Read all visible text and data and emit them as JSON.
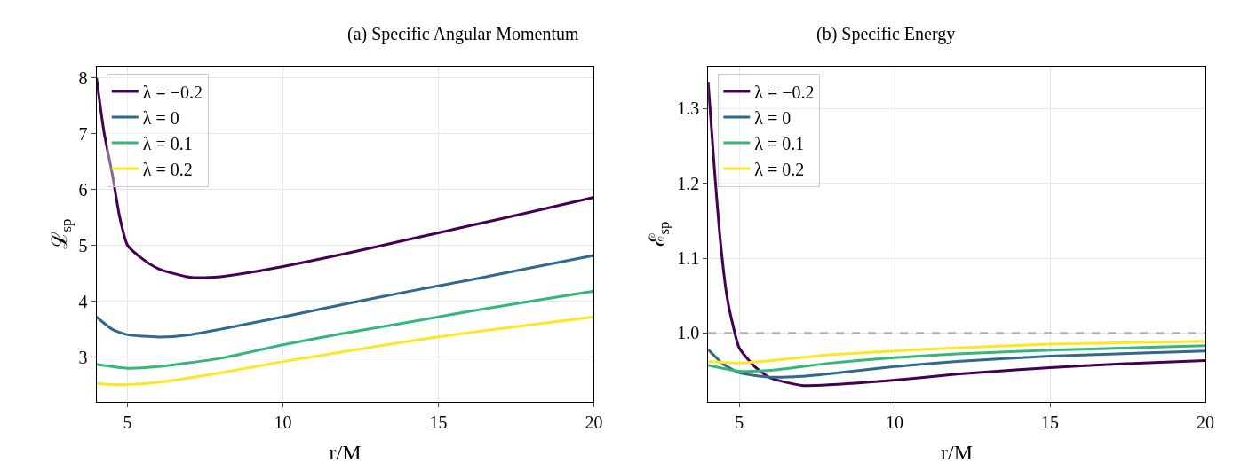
{
  "chart_data": [
    {
      "type": "line",
      "title": "(a) Specific Angular Momentum",
      "xlabel": "r/M",
      "ylabel": "ℒ$_{sp}$",
      "xlim": [
        4,
        20
      ],
      "ylim": [
        2.2,
        8.2
      ],
      "xticks": [
        5,
        10,
        15,
        20
      ],
      "yticks": [
        3,
        4,
        5,
        6,
        7,
        8
      ],
      "grid": true,
      "legend": "top left",
      "line_style": "solid",
      "marker": "none",
      "series": [
        {
          "name": "λ = −0.2",
          "color": "#440154",
          "x": [
            4,
            4.25,
            4.5,
            4.75,
            5,
            5.5,
            6,
            7,
            8,
            9,
            10,
            12,
            14,
            16,
            18,
            20
          ],
          "values": [
            8.0,
            7.0,
            6.3,
            5.5,
            5.0,
            4.75,
            4.58,
            4.43,
            4.44,
            4.52,
            4.62,
            4.85,
            5.1,
            5.35,
            5.6,
            5.86
          ]
        },
        {
          "name": "λ = 0",
          "color": "#31688e",
          "x": [
            4,
            4.5,
            5,
            6,
            7,
            8,
            10,
            12,
            14,
            16,
            18,
            20
          ],
          "values": [
            3.72,
            3.5,
            3.4,
            3.36,
            3.4,
            3.5,
            3.72,
            3.95,
            4.17,
            4.38,
            4.6,
            4.82
          ]
        },
        {
          "name": "λ = 0.1",
          "color": "#35b779",
          "x": [
            4,
            5,
            6,
            8,
            10,
            12,
            14,
            16,
            18,
            20
          ],
          "values": [
            2.87,
            2.8,
            2.83,
            2.98,
            3.22,
            3.43,
            3.62,
            3.82,
            4.0,
            4.18
          ]
        },
        {
          "name": "λ = 0.2",
          "color": "#fde725",
          "x": [
            4,
            4.5,
            5,
            6,
            8,
            10,
            12,
            14,
            16,
            18,
            20
          ],
          "values": [
            2.53,
            2.51,
            2.51,
            2.55,
            2.72,
            2.92,
            3.1,
            3.28,
            3.44,
            3.58,
            3.72
          ]
        }
      ]
    },
    {
      "type": "line",
      "title": "(b) Specific Energy",
      "xlabel": "r/M",
      "ylabel": "ℰ$_{sp}$",
      "xlim": [
        4,
        20
      ],
      "ylim": [
        0.908,
        1.356
      ],
      "xticks": [
        5,
        10,
        15,
        20
      ],
      "yticks": [
        {
          "value": 1,
          "label": "1.0"
        },
        1.1,
        1.2,
        1.3
      ],
      "grid": true,
      "legend": "top left",
      "line_style": "solid",
      "marker": "none",
      "ref_lines": [
        {
          "axis": "y",
          "value": 1,
          "label": null,
          "color": "#b0b0b0",
          "line_style": "dashed"
        }
      ],
      "series": [
        {
          "name": "λ = −0.2",
          "color": "#440154",
          "x": [
            4,
            4.2,
            4.4,
            4.6,
            4.8,
            5,
            5.5,
            6,
            7,
            8,
            10,
            12,
            14,
            16,
            18,
            20
          ],
          "values": [
            1.335,
            1.22,
            1.12,
            1.05,
            1.01,
            0.98,
            0.955,
            0.94,
            0.93,
            0.931,
            0.937,
            0.945,
            0.951,
            0.956,
            0.96,
            0.963
          ]
        },
        {
          "name": "λ = 0",
          "color": "#31688e",
          "x": [
            4,
            4.5,
            5,
            6,
            7,
            8,
            10,
            12,
            15,
            20
          ],
          "values": [
            0.978,
            0.958,
            0.947,
            0.941,
            0.942,
            0.946,
            0.955,
            0.962,
            0.969,
            0.976
          ]
        },
        {
          "name": "λ = 0.1",
          "color": "#35b779",
          "x": [
            4,
            5,
            6,
            8,
            10,
            12,
            15,
            20
          ],
          "values": [
            0.957,
            0.949,
            0.95,
            0.96,
            0.967,
            0.972,
            0.977,
            0.983
          ]
        },
        {
          "name": "λ = 0.2",
          "color": "#fde725",
          "x": [
            4,
            5,
            6,
            8,
            10,
            12,
            15,
            20
          ],
          "values": [
            0.962,
            0.96,
            0.963,
            0.971,
            0.976,
            0.98,
            0.985,
            0.989
          ]
        }
      ]
    }
  ]
}
